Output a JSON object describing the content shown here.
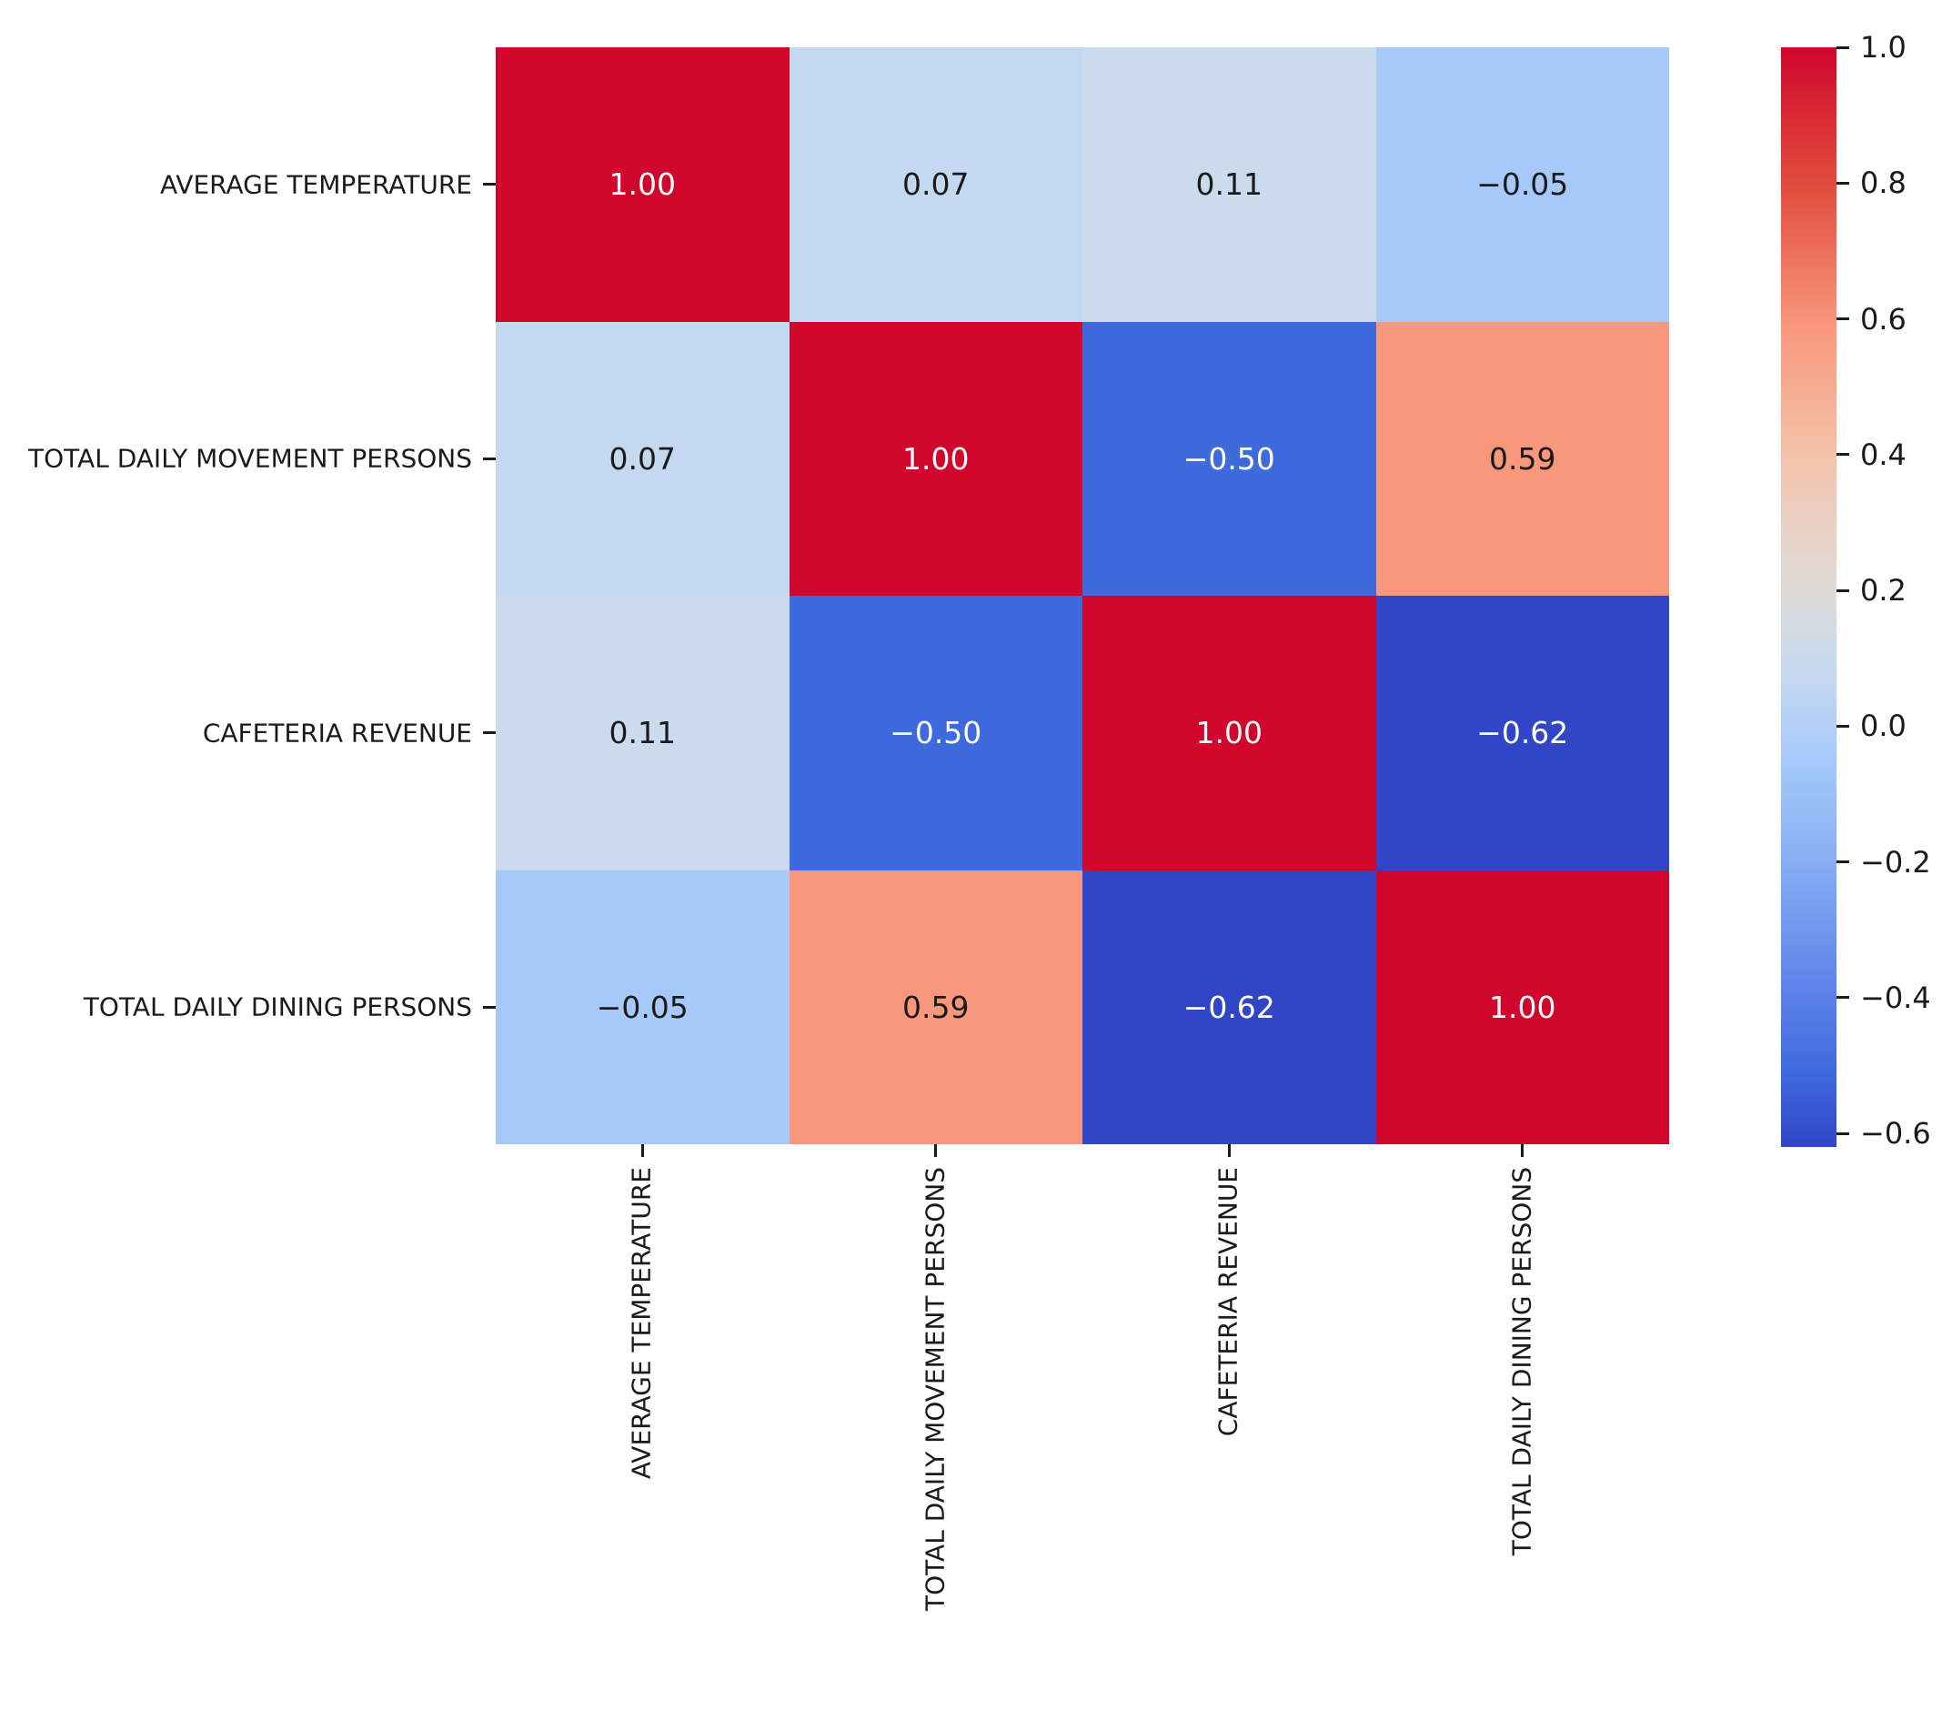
{
  "chart_data": {
    "type": "heatmap",
    "title": "",
    "xlabel": "",
    "ylabel": "",
    "categories": [
      "AVERAGE TEMPERATURE",
      "TOTAL DAILY MOVEMENT PERSONS",
      "CAFETERIA REVENUE",
      "TOTAL DAILY DINING PERSONS"
    ],
    "matrix": [
      [
        1.0,
        0.07,
        0.11,
        -0.05
      ],
      [
        0.07,
        1.0,
        -0.5,
        0.59
      ],
      [
        0.11,
        -0.5,
        1.0,
        -0.62
      ],
      [
        -0.05,
        0.59,
        -0.62,
        1.0
      ]
    ],
    "annotations": [
      [
        "1.00",
        "0.07",
        "0.11",
        "−0.05"
      ],
      [
        "0.07",
        "1.00",
        "−0.50",
        "0.59"
      ],
      [
        "0.11",
        "−0.50",
        "1.00",
        "−0.62"
      ],
      [
        "−0.05",
        "0.59",
        "−0.62",
        "1.00"
      ]
    ],
    "cell_colors": [
      [
        "#d0062c",
        "#c4d8f0",
        "#ccdaee",
        "#a6c9fa"
      ],
      [
        "#c4d8f0",
        "#d0062c",
        "#3f6ade",
        "#f9977c"
      ],
      [
        "#ccdaee",
        "#3f6ade",
        "#d0062c",
        "#3146c6"
      ],
      [
        "#a6c9fa",
        "#f9977c",
        "#3146c6",
        "#d0062c"
      ]
    ],
    "cell_text_colors": [
      [
        "#ffffff",
        "#1a1a1a",
        "#1a1a1a",
        "#1a1a1a"
      ],
      [
        "#1a1a1a",
        "#ffffff",
        "#ffffff",
        "#1a1a1a"
      ],
      [
        "#1a1a1a",
        "#ffffff",
        "#ffffff",
        "#ffffff"
      ],
      [
        "#1a1a1a",
        "#1a1a1a",
        "#ffffff",
        "#ffffff"
      ]
    ],
    "colormap": "coolwarm",
    "vmin": -0.62,
    "vmax": 1.0,
    "colorbar_ticks": [
      "1.0",
      "0.8",
      "0.6",
      "0.4",
      "0.2",
      "0.0",
      "−0.2",
      "−0.4",
      "−0.6"
    ],
    "colorbar_tick_values": [
      1.0,
      0.8,
      0.6,
      0.4,
      0.2,
      0.0,
      -0.2,
      -0.4,
      -0.6
    ],
    "colorbar_gradient_stops": [
      {
        "pct": 0,
        "color": "#d0062c"
      },
      {
        "pct": 9,
        "color": "#dd3a39"
      },
      {
        "pct": 12.3,
        "color": "#e14a3b"
      },
      {
        "pct": 25.3,
        "color": "#f9977c"
      },
      {
        "pct": 37,
        "color": "#f4c2a9"
      },
      {
        "pct": 44,
        "color": "#e8d2c6"
      },
      {
        "pct": 50,
        "color": "#dcdbda"
      },
      {
        "pct": 57.4,
        "color": "#c4d8f0"
      },
      {
        "pct": 64.8,
        "color": "#a6c9fa"
      },
      {
        "pct": 74.1,
        "color": "#87aef3"
      },
      {
        "pct": 86.4,
        "color": "#5b80e8"
      },
      {
        "pct": 93.2,
        "color": "#3f6ade"
      },
      {
        "pct": 100,
        "color": "#3146c6"
      }
    ],
    "legend_position": "right",
    "grid": false,
    "colors": {
      "max_red": "#d0062c",
      "min_blue": "#3146c6",
      "mid_grey": "#dcdbda",
      "text_dark": "#1a1a1a",
      "text_light": "#ffffff",
      "background": "#ffffff"
    }
  }
}
